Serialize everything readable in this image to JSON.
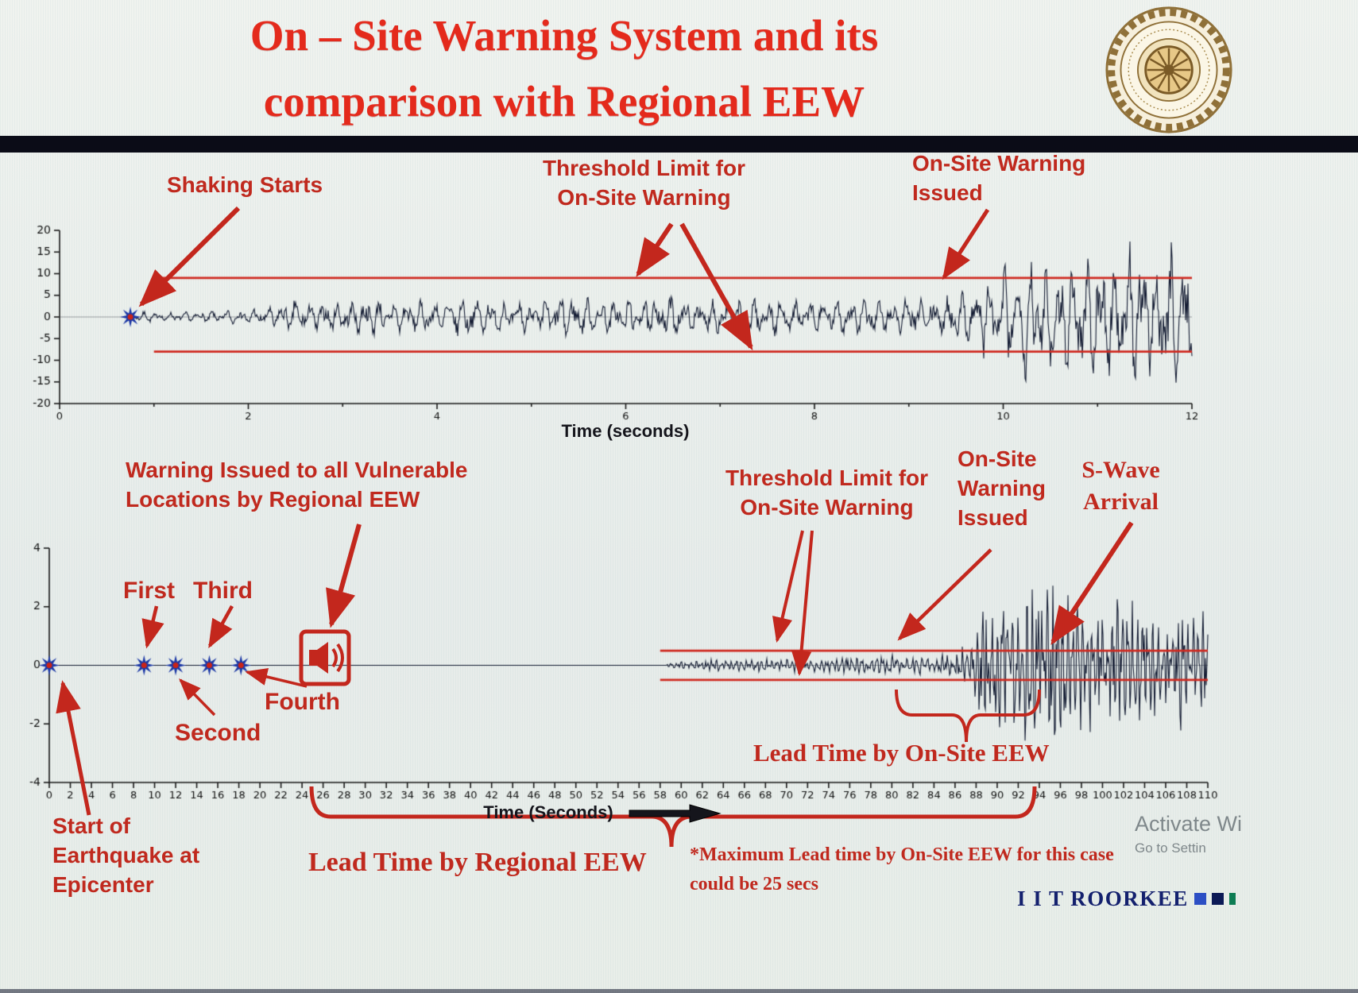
{
  "header": {
    "title": "On – Site Warning System and its\ncomparison with Regional EEW",
    "logo_name": "iit-roorkee-emblem"
  },
  "annotations": {
    "top": {
      "shaking_starts": "Shaking Starts",
      "threshold_limit": "Threshold Limit for\nOn-Site Warning",
      "warning_issued": "On-Site Warning\nIssued"
    },
    "bottom": {
      "regional_warning": "Warning Issued to all Vulnerable\nLocations by Regional EEW",
      "p_first": "First",
      "p_second": "Second",
      "p_third": "Third",
      "p_fourth": "Fourth",
      "threshold_limit": "Threshold Limit for\nOn-Site Warning",
      "onsite_warning": "On-Site\nWarning\nIssued",
      "s_wave": "S-Wave\nArrival",
      "lead_onsite": "Lead Time by On-Site EEW",
      "lead_regional": "Lead Time by Regional EEW",
      "max_lead_note": "*Maximum Lead time by On-Site EEW for this case\ncould be 25 secs",
      "start_epicenter": "Start of\nEarthquake at\nEpicenter"
    }
  },
  "footer": {
    "brand": "I I T ROORKEE",
    "watermark_line1": "Activate Wi",
    "watermark_line2": "Go to Settin"
  },
  "chart_data": [
    {
      "type": "line",
      "title": "",
      "xlabel": "Time (seconds)",
      "ylabel": "",
      "xlim": [
        0,
        12
      ],
      "ylim": [
        -20,
        20
      ],
      "xticks": [
        0,
        2,
        4,
        6,
        8,
        10,
        12
      ],
      "xminor": [
        1,
        3,
        5,
        7,
        9,
        11
      ],
      "yticks": [
        20,
        15,
        10,
        5,
        0,
        -5,
        -10,
        -15,
        -20
      ],
      "grid": false,
      "series_name": "on-site seismogram",
      "thresholds": {
        "upper": 9,
        "lower": -8,
        "start_t": 1.0,
        "color": "#cf2a20"
      },
      "events": {
        "shaking_starts_t": 0.75,
        "onsite_warning_issued_t": 9.4
      },
      "star_ts": [
        0.75
      ],
      "draw_from": 0.72,
      "clip": 18.5,
      "envelope": [
        [
          0.72,
          0.05
        ],
        [
          0.85,
          1.1
        ],
        [
          1.3,
          0.9
        ],
        [
          1.8,
          1.4
        ],
        [
          2.2,
          2.0
        ],
        [
          2.5,
          3.8
        ],
        [
          2.9,
          2.8
        ],
        [
          3.3,
          3.9
        ],
        [
          3.8,
          3.0
        ],
        [
          4.3,
          4.2
        ],
        [
          4.8,
          3.2
        ],
        [
          5.3,
          4.3
        ],
        [
          5.8,
          3.3
        ],
        [
          6.3,
          4.4
        ],
        [
          6.8,
          3.4
        ],
        [
          7.3,
          4.3
        ],
        [
          7.8,
          3.2
        ],
        [
          8.3,
          4.0
        ],
        [
          8.8,
          3.3
        ],
        [
          9.2,
          4.0
        ],
        [
          9.55,
          4.8
        ],
        [
          9.8,
          7.5
        ],
        [
          10.05,
          10.5
        ],
        [
          10.3,
          13.5
        ],
        [
          10.55,
          10.5
        ],
        [
          10.8,
          14.0
        ],
        [
          11.05,
          11.0
        ],
        [
          11.3,
          14.5
        ],
        [
          11.55,
          11.5
        ],
        [
          11.8,
          14.5
        ],
        [
          12,
          12.5
        ]
      ],
      "osc": {
        "f1": 6.8,
        "f2": 11.3,
        "noise": 0.45,
        "seed": 7
      }
    },
    {
      "type": "line",
      "title": "",
      "xlabel": "Time (Seconds)",
      "ylabel": "",
      "xlim": [
        0,
        110
      ],
      "ylim": [
        -4,
        4
      ],
      "xtick_step": 2,
      "yticks": [
        4,
        2,
        0,
        -2,
        -4
      ],
      "grid": false,
      "series_name": "epicentral-region seismogram",
      "thresholds": {
        "upper": 0.5,
        "lower": -0.5,
        "start_t": 58,
        "color": "#cf2a20"
      },
      "events": {
        "start_of_earthquake_t": 0,
        "p_first_t": 9,
        "p_second_t": 12,
        "p_third_t": 15.2,
        "p_fourth_t": 18.2,
        "regional_warning_issued_t": 24.5,
        "onsite_warning_issued_t": 80,
        "s_wave_arrival_t": 93,
        "lead_time_onsite_range": [
          80,
          94
        ],
        "lead_time_regional_range": [
          25,
          93
        ],
        "max_lead_time_onsite_secs": 25
      },
      "star_ts": [
        0,
        9,
        12,
        15.2,
        18.2
      ],
      "draw_from": 0,
      "clip": 3.8,
      "envelope": [
        [
          0,
          0
        ],
        [
          58.5,
          0
        ],
        [
          59,
          0.1
        ],
        [
          61,
          0.13
        ],
        [
          63,
          0.17
        ],
        [
          65,
          0.14
        ],
        [
          67,
          0.2
        ],
        [
          69,
          0.16
        ],
        [
          71,
          0.21
        ],
        [
          73,
          0.17
        ],
        [
          75,
          0.22
        ],
        [
          77,
          0.25
        ],
        [
          79,
          0.3
        ],
        [
          81,
          0.24
        ],
        [
          83,
          0.3
        ],
        [
          85,
          0.33
        ],
        [
          86.5,
          0.45
        ],
        [
          87.5,
          0.9
        ],
        [
          88.5,
          1.8
        ],
        [
          89.5,
          2.5
        ],
        [
          90.5,
          2.1
        ],
        [
          91.5,
          2.5
        ],
        [
          92.5,
          2.0
        ],
        [
          93.5,
          2.5
        ],
        [
          94.5,
          2.0
        ],
        [
          95.5,
          2.4
        ],
        [
          96.5,
          1.9
        ],
        [
          97.5,
          2.3
        ],
        [
          98.5,
          1.8
        ],
        [
          99.5,
          2.2
        ],
        [
          100.5,
          1.8
        ],
        [
          101.5,
          2.1
        ],
        [
          102.5,
          1.7
        ],
        [
          103.5,
          2.0
        ],
        [
          104.5,
          1.6
        ],
        [
          105.5,
          1.9
        ],
        [
          106.5,
          1.5
        ],
        [
          107.5,
          1.8
        ],
        [
          108.5,
          1.4
        ],
        [
          109.5,
          1.6
        ],
        [
          110,
          1.3
        ]
      ],
      "osc": {
        "f1": 2.1,
        "f2": 3.6,
        "noise": 0.5,
        "seed": 13
      }
    }
  ]
}
